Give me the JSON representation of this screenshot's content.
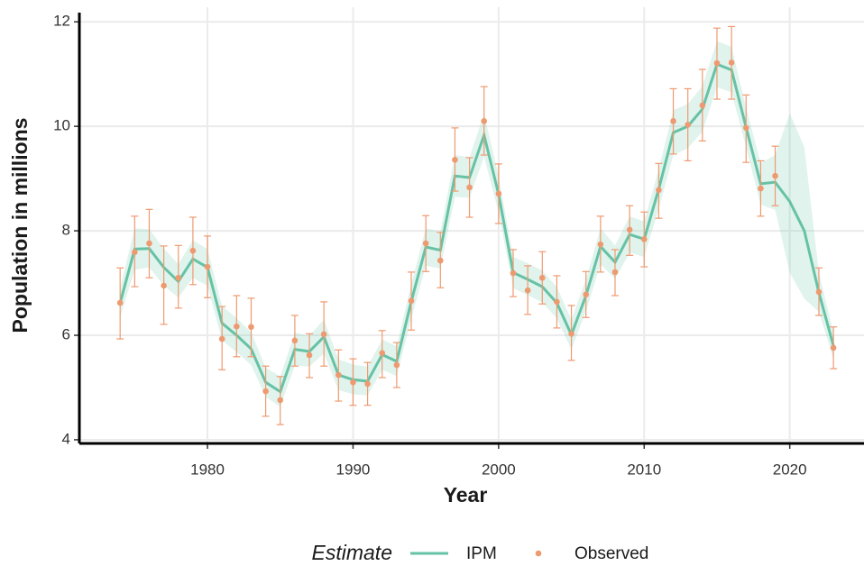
{
  "chart_data": {
    "type": "line",
    "x_label": "Year",
    "y_label": "Population in millions",
    "legend_title": "Estimate",
    "xlim": [
      1971.2,
      2025.1
    ],
    "ylim": [
      3.93,
      12.28
    ],
    "xticks": [
      1980,
      1990,
      2000,
      2010,
      2020
    ],
    "yticks": [
      4,
      6,
      8,
      10,
      12
    ],
    "grid": true,
    "x": [
      1974,
      1975,
      1976,
      1977,
      1978,
      1979,
      1980,
      1981,
      1982,
      1983,
      1984,
      1985,
      1986,
      1987,
      1988,
      1989,
      1990,
      1991,
      1992,
      1993,
      1994,
      1995,
      1996,
      1997,
      1998,
      1999,
      2000,
      2001,
      2002,
      2003,
      2004,
      2005,
      2006,
      2007,
      2008,
      2009,
      2010,
      2011,
      2012,
      2013,
      2014,
      2015,
      2016,
      2017,
      2018,
      2019,
      2020,
      2021,
      2022,
      2023
    ],
    "series": [
      {
        "name": "IPM",
        "color": "#66c2a5",
        "values": [
          6.62,
          7.65,
          7.66,
          7.3,
          7.03,
          7.46,
          7.3,
          6.23,
          6.0,
          5.74,
          5.1,
          4.92,
          5.73,
          5.69,
          5.97,
          5.24,
          5.15,
          5.12,
          5.63,
          5.5,
          6.65,
          7.69,
          7.63,
          9.05,
          9.02,
          9.83,
          8.7,
          7.2,
          7.07,
          6.93,
          6.62,
          6.01,
          6.76,
          7.7,
          7.4,
          7.93,
          7.84,
          8.8,
          9.88,
          10.0,
          10.33,
          11.19,
          11.08,
          9.98,
          8.9,
          8.93,
          8.56,
          8.0,
          6.82,
          5.8
        ],
        "lower": [
          6.35,
          7.25,
          7.3,
          6.95,
          6.72,
          7.1,
          6.95,
          5.9,
          5.68,
          5.43,
          4.82,
          4.63,
          5.42,
          5.4,
          5.65,
          4.95,
          4.87,
          4.85,
          5.34,
          5.22,
          6.32,
          7.33,
          7.28,
          8.65,
          8.63,
          9.42,
          8.35,
          6.9,
          6.77,
          6.63,
          6.32,
          5.73,
          6.46,
          7.36,
          7.08,
          7.58,
          7.5,
          8.42,
          9.45,
          9.58,
          9.9,
          10.75,
          10.65,
          9.6,
          8.5,
          8.4,
          7.2,
          6.7,
          6.45,
          5.55
        ],
        "upper": [
          6.9,
          8.05,
          8.03,
          7.66,
          7.36,
          7.82,
          7.65,
          6.56,
          6.33,
          6.06,
          5.38,
          5.21,
          6.05,
          5.99,
          6.3,
          5.54,
          5.44,
          5.4,
          5.92,
          5.79,
          6.98,
          8.05,
          7.98,
          9.45,
          9.41,
          10.24,
          9.05,
          7.5,
          7.38,
          7.24,
          6.92,
          6.3,
          7.07,
          8.05,
          7.72,
          8.28,
          8.18,
          9.18,
          10.31,
          10.43,
          10.77,
          11.63,
          11.52,
          10.36,
          9.3,
          9.45,
          10.25,
          9.6,
          7.2,
          6.06
        ]
      },
      {
        "name": "Observed",
        "color": "#ee9a70",
        "values": [
          6.62,
          7.59,
          7.76,
          6.95,
          7.1,
          7.62,
          7.31,
          5.93,
          6.17,
          6.16,
          4.93,
          4.76,
          5.9,
          5.62,
          6.02,
          5.24,
          5.1,
          5.07,
          5.66,
          5.43,
          6.66,
          7.76,
          7.43,
          9.36,
          8.83,
          10.1,
          8.71,
          7.19,
          6.86,
          7.1,
          6.64,
          6.03,
          6.78,
          7.74,
          7.21,
          8.02,
          7.84,
          8.78,
          10.1,
          10.03,
          10.4,
          11.21,
          11.22,
          9.97,
          8.81,
          9.05,
          null,
          null,
          6.83,
          5.76
        ],
        "lower": [
          5.93,
          6.93,
          7.1,
          6.21,
          6.52,
          6.97,
          6.72,
          5.34,
          5.59,
          5.59,
          4.45,
          4.29,
          5.41,
          5.19,
          5.41,
          4.74,
          4.66,
          4.66,
          5.19,
          5.0,
          6.1,
          7.22,
          6.91,
          8.76,
          8.26,
          9.45,
          8.14,
          6.74,
          6.4,
          6.6,
          6.14,
          5.52,
          6.34,
          7.21,
          6.76,
          7.53,
          7.31,
          8.24,
          9.47,
          9.34,
          9.72,
          10.52,
          10.52,
          9.31,
          8.28,
          8.48,
          null,
          null,
          6.38,
          5.36
        ],
        "upper": [
          7.29,
          8.28,
          8.41,
          7.71,
          7.72,
          8.26,
          7.9,
          6.55,
          6.76,
          6.71,
          5.41,
          5.21,
          6.38,
          6.03,
          6.64,
          5.72,
          5.55,
          5.48,
          6.09,
          5.86,
          7.21,
          8.29,
          7.97,
          9.97,
          9.4,
          10.76,
          9.28,
          7.64,
          7.33,
          7.6,
          7.14,
          6.57,
          7.22,
          8.28,
          7.64,
          8.48,
          8.36,
          9.29,
          10.72,
          10.72,
          11.09,
          11.88,
          11.91,
          10.6,
          9.34,
          9.62,
          null,
          null,
          7.29,
          6.16
        ]
      }
    ]
  }
}
